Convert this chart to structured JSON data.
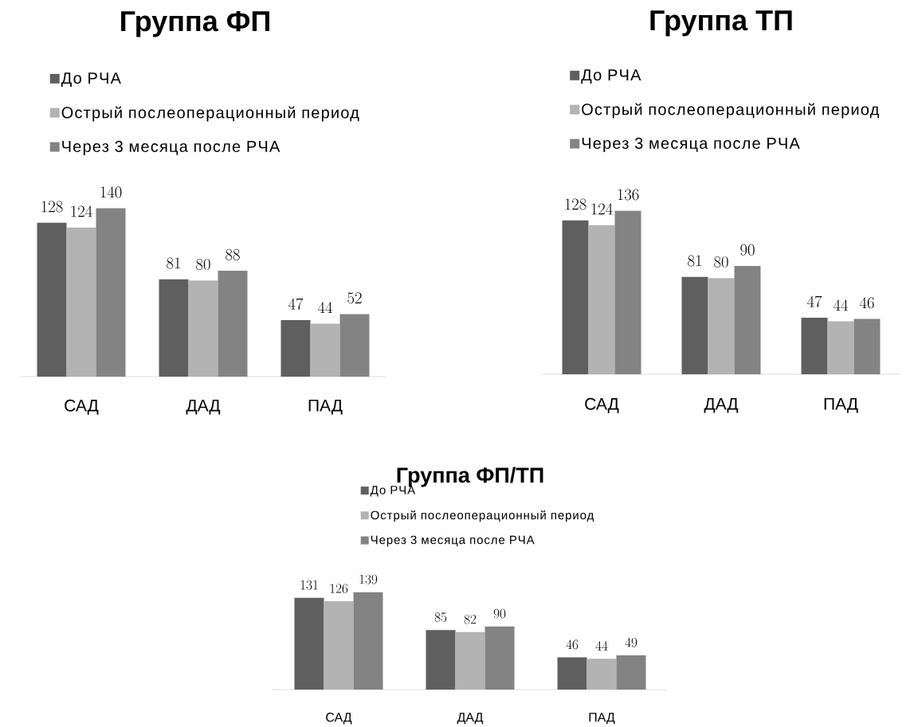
{
  "chart_data": [
    {
      "type": "bar",
      "title": "Группа ФП",
      "categories": [
        "САД",
        "ДАД",
        "ПАД"
      ],
      "series": [
        {
          "name": "До РЧА",
          "color": "#5f5f5f",
          "values": [
            128,
            81,
            47
          ]
        },
        {
          "name": "Острый послеоперационный период",
          "color": "#b3b3b3",
          "values": [
            124,
            80,
            44
          ]
        },
        {
          "name": "Через 3 месяца после РЧА",
          "color": "#838383",
          "values": [
            140,
            88,
            52
          ]
        }
      ],
      "data_labels": true,
      "legend": "top left"
    },
    {
      "type": "bar",
      "title": "Группа ТП",
      "categories": [
        "САД",
        "ДАД",
        "ПАД"
      ],
      "series": [
        {
          "name": "До РЧА",
          "color": "#5f5f5f",
          "values": [
            128,
            81,
            47
          ]
        },
        {
          "name": "Острый послеоперационный период",
          "color": "#b3b3b3",
          "values": [
            124,
            80,
            44
          ]
        },
        {
          "name": "Через 3 месяца после РЧА",
          "color": "#838383",
          "values": [
            136,
            90,
            46
          ]
        }
      ],
      "data_labels": true,
      "legend": "top left"
    },
    {
      "type": "bar",
      "title": "Группа ФП/ТП",
      "categories": [
        "САД",
        "ДАД",
        "ПАД"
      ],
      "series": [
        {
          "name": "До РЧА",
          "color": "#5f5f5f",
          "values": [
            131,
            85,
            46
          ]
        },
        {
          "name": "Острый послеоперационный период",
          "color": "#b3b3b3",
          "values": [
            126,
            82,
            44
          ]
        },
        {
          "name": "Через 3 месяца после РЧА",
          "color": "#838383",
          "values": [
            139,
            90,
            49
          ]
        }
      ],
      "data_labels": true,
      "legend": "top left"
    }
  ]
}
